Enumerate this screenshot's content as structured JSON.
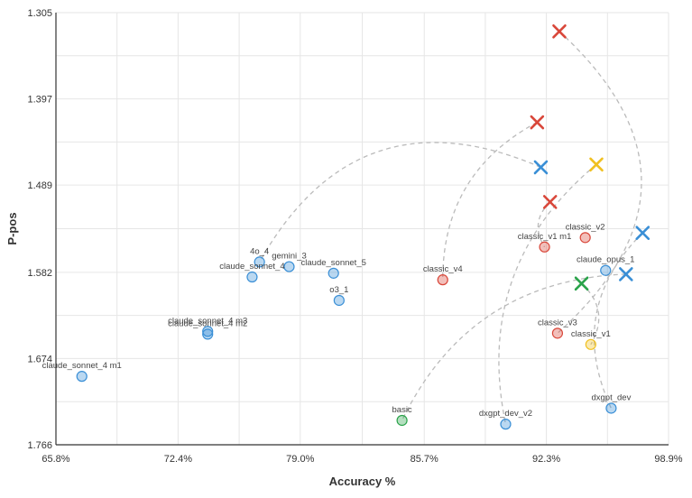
{
  "chart_data": {
    "type": "scatter",
    "xlabel": "Accuracy %",
    "ylabel": "P-pos",
    "xlim": [
      65.8,
      98.9
    ],
    "ylim": [
      1.305,
      1.766
    ],
    "y_inverted": true,
    "grid": true,
    "x_ticks": [
      {
        "value": 65.8,
        "label": "65.8%"
      },
      {
        "value": 72.4,
        "label": "72.4%"
      },
      {
        "value": 79.0,
        "label": "79.0%"
      },
      {
        "value": 85.7,
        "label": "85.7%"
      },
      {
        "value": 92.3,
        "label": "92.3%"
      },
      {
        "value": 98.9,
        "label": "98.9%"
      }
    ],
    "y_ticks": [
      {
        "value": 1.305,
        "label": "1.305"
      },
      {
        "value": 1.397,
        "label": "1.397"
      },
      {
        "value": 1.489,
        "label": "1.489"
      },
      {
        "value": 1.582,
        "label": "1.582"
      },
      {
        "value": 1.674,
        "label": "1.674"
      },
      {
        "value": 1.766,
        "label": "1.766"
      }
    ],
    "colors": {
      "blue": "#3a8fd6",
      "red": "#d9473a",
      "yellow": "#f0c020",
      "green": "#2aa34a",
      "dashed_line": "#bbbbbb",
      "grid": "#e6e6e6",
      "axis": "#333333"
    },
    "points": [
      {
        "label": "claude_sonnet_4 m1",
        "x": 67.2,
        "y": 1.693,
        "color": "blue"
      },
      {
        "label": "claude_sonnet_4 m3",
        "x": 74.0,
        "y": 1.645,
        "color": "blue"
      },
      {
        "label": "claude_sonnet_4 m2",
        "x": 74.0,
        "y": 1.648,
        "color": "blue"
      },
      {
        "label": "4o_4",
        "x": 76.8,
        "y": 1.571,
        "color": "blue"
      },
      {
        "label": "claude_sonnet_4",
        "x": 76.4,
        "y": 1.587,
        "color": "blue"
      },
      {
        "label": "gemini_3",
        "x": 78.4,
        "y": 1.576,
        "color": "blue"
      },
      {
        "label": "claude_sonnet_5",
        "x": 80.8,
        "y": 1.583,
        "color": "blue"
      },
      {
        "label": "o3_1",
        "x": 81.1,
        "y": 1.612,
        "color": "blue"
      },
      {
        "label": "basic",
        "x": 84.5,
        "y": 1.74,
        "color": "green"
      },
      {
        "label": "classic_v4",
        "x": 86.7,
        "y": 1.59,
        "color": "red"
      },
      {
        "label": "dxgpt_dev_v2",
        "x": 90.1,
        "y": 1.744,
        "color": "blue"
      },
      {
        "label": "classic_v1 m1",
        "x": 92.2,
        "y": 1.555,
        "color": "red"
      },
      {
        "label": "classic_v3",
        "x": 92.9,
        "y": 1.647,
        "color": "red"
      },
      {
        "label": "classic_v2",
        "x": 94.4,
        "y": 1.545,
        "color": "red"
      },
      {
        "label": "classic_v1",
        "x": 94.7,
        "y": 1.659,
        "color": "yellow"
      },
      {
        "label": "claude_opus_1",
        "x": 95.5,
        "y": 1.58,
        "color": "blue"
      },
      {
        "label": "dxgpt_dev",
        "x": 95.8,
        "y": 1.727,
        "color": "blue"
      }
    ],
    "cross_markers": [
      {
        "x": 93.0,
        "y": 1.325,
        "color": "red"
      },
      {
        "x": 91.8,
        "y": 1.422,
        "color": "red"
      },
      {
        "x": 92.0,
        "y": 1.47,
        "color": "blue"
      },
      {
        "x": 95.0,
        "y": 1.467,
        "color": "yellow"
      },
      {
        "x": 92.5,
        "y": 1.507,
        "color": "red"
      },
      {
        "x": 97.5,
        "y": 1.54,
        "color": "blue"
      },
      {
        "x": 94.2,
        "y": 1.594,
        "color": "green"
      },
      {
        "x": 96.6,
        "y": 1.584,
        "color": "blue"
      }
    ],
    "connectors": [
      {
        "from": [
          93.0,
          1.325
        ],
        "to": [
          92.9,
          1.647
        ],
        "bend": -0.55
      },
      {
        "from": [
          91.8,
          1.422
        ],
        "to": [
          86.7,
          1.59
        ],
        "bend": 0.3
      },
      {
        "from": [
          92.0,
          1.47
        ],
        "to": [
          76.8,
          1.571
        ],
        "bend": 0.45
      },
      {
        "from": [
          95.0,
          1.467
        ],
        "to": [
          90.1,
          1.744
        ],
        "bend": 0.3
      },
      {
        "from": [
          92.5,
          1.507
        ],
        "to": [
          92.2,
          1.555
        ],
        "bend": 0.4
      },
      {
        "from": [
          97.5,
          1.54
        ],
        "to": [
          95.8,
          1.727
        ],
        "bend": 0.35
      },
      {
        "from": [
          94.2,
          1.594
        ],
        "to": [
          94.7,
          1.659
        ],
        "bend": -0.4
      },
      {
        "from": [
          96.6,
          1.584
        ],
        "to": [
          84.5,
          1.74
        ],
        "bend": 0.3
      }
    ]
  }
}
